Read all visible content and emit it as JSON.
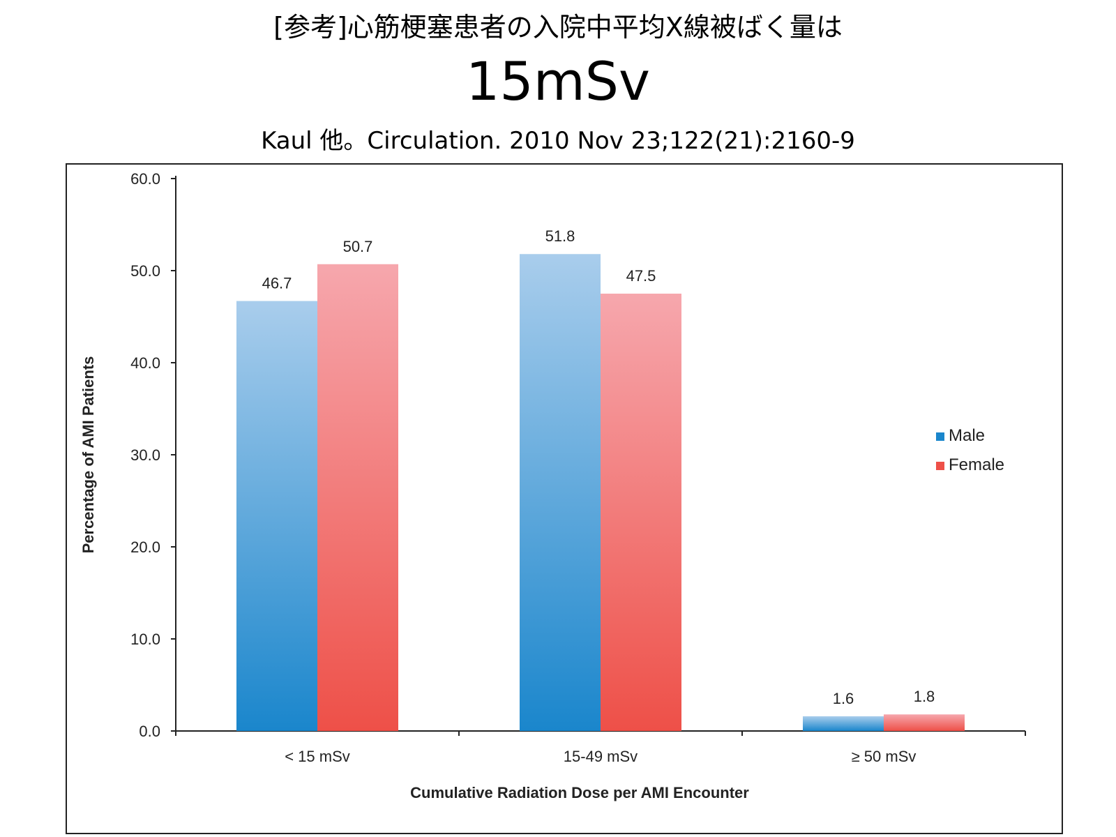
{
  "slide": {
    "title": "[参考]心筋梗塞患者の入院中平均X線被ばく量は",
    "value": "15mSv",
    "citation": "Kaul 他。Circulation. 2010 Nov 23;122(21):2160-9"
  },
  "chart_data": {
    "type": "bar",
    "title": "",
    "xlabel": "Cumulative Radiation Dose per AMI Encounter",
    "ylabel": "Percentage of AMI Patients",
    "ylim": [
      0,
      60
    ],
    "yticks": [
      "0.0",
      "10.0",
      "20.0",
      "30.0",
      "40.0",
      "50.0",
      "60.0"
    ],
    "categories": [
      "< 15 mSv",
      "15-49 mSv",
      "≥ 50 mSv"
    ],
    "series": [
      {
        "name": "Male",
        "values": [
          46.7,
          51.8,
          1.6
        ],
        "value_labels": [
          "46.7",
          "51.8",
          "1.6"
        ],
        "color_top": "#a9cdec",
        "color_bottom": "#1a86cc"
      },
      {
        "name": "Female",
        "values": [
          50.7,
          47.5,
          1.8
        ],
        "value_labels": [
          "50.7",
          "47.5",
          "1.8"
        ],
        "color_top": "#f6a7ad",
        "color_bottom": "#ee5048"
      }
    ],
    "grid": false,
    "legend_position": "right"
  }
}
